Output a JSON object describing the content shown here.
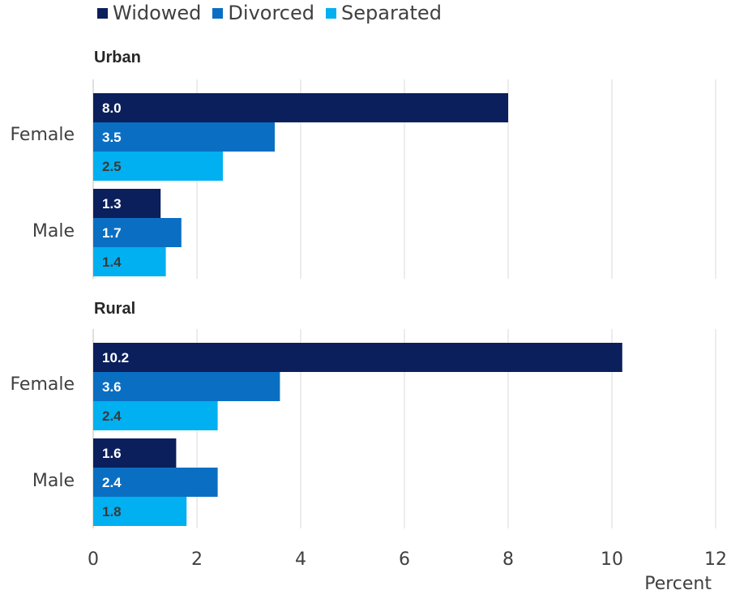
{
  "chart_data": {
    "type": "bar",
    "orientation": "horizontal",
    "legend": {
      "placement": "top-left",
      "entries": [
        {
          "name": "Widowed",
          "color": "#0b1f5c"
        },
        {
          "name": "Divorced",
          "color": "#0a6fc2"
        },
        {
          "name": "Separated",
          "color": "#00b0f0"
        }
      ]
    },
    "xlabel": "Percent",
    "xlim": [
      0,
      12
    ],
    "xticks": [
      0,
      2,
      4,
      6,
      8,
      10,
      12
    ],
    "grid": "vertical",
    "panels": [
      {
        "title": "Urban",
        "categories": [
          "Female",
          "Male"
        ],
        "series": [
          {
            "name": "Widowed",
            "values": [
              8.0,
              1.3
            ],
            "labels": [
              "8.0",
              "1.3"
            ]
          },
          {
            "name": "Divorced",
            "values": [
              3.5,
              1.7
            ],
            "labels": [
              "3.5",
              "1.7"
            ]
          },
          {
            "name": "Separated",
            "values": [
              2.5,
              1.4
            ],
            "labels": [
              "2.5",
              "1.4"
            ]
          }
        ]
      },
      {
        "title": "Rural",
        "categories": [
          "Female",
          "Male"
        ],
        "series": [
          {
            "name": "Widowed",
            "values": [
              10.2,
              1.6
            ],
            "labels": [
              "10.2",
              "1.6"
            ]
          },
          {
            "name": "Divorced",
            "values": [
              3.6,
              2.4
            ],
            "labels": [
              "3.6",
              "2.4"
            ]
          },
          {
            "name": "Separated",
            "values": [
              2.4,
              1.8
            ],
            "labels": [
              "2.4",
              "1.8"
            ]
          }
        ]
      }
    ]
  }
}
